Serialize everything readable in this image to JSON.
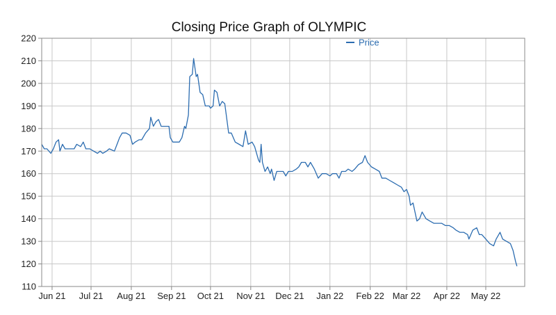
{
  "chart_data": {
    "type": "line",
    "title": "Closing Price Graph of OLYMPIC",
    "xlabel": "",
    "ylabel": "",
    "ylim": [
      110,
      220
    ],
    "yticks": [
      110,
      120,
      130,
      140,
      150,
      160,
      170,
      180,
      190,
      200,
      210,
      220
    ],
    "x_start": "2021-05-24",
    "x_end": "2022-05-31",
    "xticks": [
      {
        "date": "2021-06-01",
        "label": "Jun 21"
      },
      {
        "date": "2021-07-01",
        "label": "Jul 21"
      },
      {
        "date": "2021-08-01",
        "label": "Aug 21"
      },
      {
        "date": "2021-09-01",
        "label": "Sep 21"
      },
      {
        "date": "2021-10-01",
        "label": "Oct 21"
      },
      {
        "date": "2021-11-01",
        "label": "Nov 21"
      },
      {
        "date": "2021-12-01",
        "label": "Dec 21"
      },
      {
        "date": "2022-01-01",
        "label": "Jan 22"
      },
      {
        "date": "2022-02-01",
        "label": "Feb 22"
      },
      {
        "date": "2022-03-01",
        "label": "Mar 22"
      },
      {
        "date": "2022-04-01",
        "label": "Apr 22"
      },
      {
        "date": "2022-05-01",
        "label": "May 22"
      }
    ],
    "grid": true,
    "legend_position": "top-right",
    "series": [
      {
        "name": "Price",
        "color": "#2b6cb0",
        "points": [
          [
            "2021-05-24",
            173
          ],
          [
            "2021-05-26",
            171
          ],
          [
            "2021-05-28",
            171
          ],
          [
            "2021-05-31",
            169
          ],
          [
            "2021-06-02",
            171
          ],
          [
            "2021-06-04",
            174
          ],
          [
            "2021-06-06",
            175
          ],
          [
            "2021-06-07",
            170
          ],
          [
            "2021-06-09",
            173
          ],
          [
            "2021-06-11",
            171
          ],
          [
            "2021-06-14",
            171
          ],
          [
            "2021-06-16",
            171
          ],
          [
            "2021-06-18",
            171
          ],
          [
            "2021-06-20",
            173
          ],
          [
            "2021-06-23",
            172
          ],
          [
            "2021-06-25",
            174
          ],
          [
            "2021-06-27",
            171
          ],
          [
            "2021-06-30",
            171
          ],
          [
            "2021-07-03",
            170
          ],
          [
            "2021-07-06",
            169
          ],
          [
            "2021-07-08",
            170
          ],
          [
            "2021-07-10",
            169
          ],
          [
            "2021-07-13",
            170
          ],
          [
            "2021-07-15",
            171
          ],
          [
            "2021-07-19",
            170
          ],
          [
            "2021-07-21",
            173
          ],
          [
            "2021-07-23",
            176
          ],
          [
            "2021-07-25",
            178
          ],
          [
            "2021-07-28",
            178
          ],
          [
            "2021-07-31",
            177
          ],
          [
            "2021-08-02",
            173
          ],
          [
            "2021-08-04",
            174
          ],
          [
            "2021-08-07",
            175
          ],
          [
            "2021-08-09",
            175
          ],
          [
            "2021-08-12",
            178
          ],
          [
            "2021-08-15",
            180
          ],
          [
            "2021-08-16",
            185
          ],
          [
            "2021-08-18",
            181
          ],
          [
            "2021-08-20",
            183
          ],
          [
            "2021-08-22",
            184
          ],
          [
            "2021-08-24",
            181
          ],
          [
            "2021-08-27",
            181
          ],
          [
            "2021-08-30",
            181
          ],
          [
            "2021-08-31",
            176
          ],
          [
            "2021-09-02",
            174
          ],
          [
            "2021-09-04",
            174
          ],
          [
            "2021-09-07",
            174
          ],
          [
            "2021-09-09",
            176
          ],
          [
            "2021-09-11",
            181
          ],
          [
            "2021-09-12",
            180
          ],
          [
            "2021-09-14",
            186
          ],
          [
            "2021-09-15",
            203
          ],
          [
            "2021-09-17",
            204
          ],
          [
            "2021-09-18",
            211
          ],
          [
            "2021-09-20",
            203
          ],
          [
            "2021-09-21",
            204
          ],
          [
            "2021-09-23",
            196
          ],
          [
            "2021-09-25",
            195
          ],
          [
            "2021-09-27",
            190
          ],
          [
            "2021-09-30",
            190
          ],
          [
            "2021-10-01",
            189
          ],
          [
            "2021-10-03",
            190
          ],
          [
            "2021-10-04",
            197
          ],
          [
            "2021-10-06",
            196
          ],
          [
            "2021-10-08",
            190
          ],
          [
            "2021-10-10",
            192
          ],
          [
            "2021-10-12",
            191
          ],
          [
            "2021-10-15",
            178
          ],
          [
            "2021-10-17",
            178
          ],
          [
            "2021-10-20",
            174
          ],
          [
            "2021-10-23",
            173
          ],
          [
            "2021-10-26",
            172
          ],
          [
            "2021-10-28",
            179
          ],
          [
            "2021-10-30",
            173
          ],
          [
            "2021-11-02",
            174
          ],
          [
            "2021-11-04",
            172
          ],
          [
            "2021-11-07",
            166
          ],
          [
            "2021-11-08",
            165
          ],
          [
            "2021-11-09",
            173
          ],
          [
            "2021-11-10",
            165
          ],
          [
            "2021-11-12",
            161
          ],
          [
            "2021-11-14",
            163
          ],
          [
            "2021-11-16",
            160
          ],
          [
            "2021-11-17",
            162
          ],
          [
            "2021-11-19",
            157
          ],
          [
            "2021-11-21",
            161
          ],
          [
            "2021-11-24",
            161
          ],
          [
            "2021-11-26",
            161
          ],
          [
            "2021-11-28",
            159
          ],
          [
            "2021-11-30",
            161
          ],
          [
            "2021-12-03",
            161
          ],
          [
            "2021-12-06",
            162
          ],
          [
            "2021-12-08",
            163
          ],
          [
            "2021-12-10",
            165
          ],
          [
            "2021-12-13",
            165
          ],
          [
            "2021-12-15",
            163
          ],
          [
            "2021-12-17",
            165
          ],
          [
            "2021-12-20",
            162
          ],
          [
            "2021-12-23",
            158
          ],
          [
            "2021-12-26",
            160
          ],
          [
            "2021-12-29",
            160
          ],
          [
            "2022-01-01",
            159
          ],
          [
            "2022-01-03",
            160
          ],
          [
            "2022-01-06",
            160
          ],
          [
            "2022-01-08",
            158
          ],
          [
            "2022-01-10",
            161
          ],
          [
            "2022-01-13",
            161
          ],
          [
            "2022-01-15",
            162
          ],
          [
            "2022-01-18",
            161
          ],
          [
            "2022-01-20",
            162
          ],
          [
            "2022-01-23",
            164
          ],
          [
            "2022-01-26",
            165
          ],
          [
            "2022-01-28",
            168
          ],
          [
            "2022-01-30",
            165
          ],
          [
            "2022-02-02",
            163
          ],
          [
            "2022-02-05",
            162
          ],
          [
            "2022-02-08",
            161
          ],
          [
            "2022-02-10",
            158
          ],
          [
            "2022-02-13",
            158
          ],
          [
            "2022-02-16",
            157
          ],
          [
            "2022-02-19",
            156
          ],
          [
            "2022-02-22",
            155
          ],
          [
            "2022-02-25",
            154
          ],
          [
            "2022-02-27",
            152
          ],
          [
            "2022-03-01",
            153
          ],
          [
            "2022-03-03",
            150
          ],
          [
            "2022-03-04",
            146
          ],
          [
            "2022-03-06",
            147
          ],
          [
            "2022-03-09",
            139
          ],
          [
            "2022-03-11",
            140
          ],
          [
            "2022-03-13",
            143
          ],
          [
            "2022-03-16",
            140
          ],
          [
            "2022-03-19",
            139
          ],
          [
            "2022-03-22",
            138
          ],
          [
            "2022-03-25",
            138
          ],
          [
            "2022-03-28",
            138
          ],
          [
            "2022-03-31",
            137
          ],
          [
            "2022-04-03",
            137
          ],
          [
            "2022-04-06",
            136
          ],
          [
            "2022-04-08",
            135
          ],
          [
            "2022-04-11",
            134
          ],
          [
            "2022-04-14",
            134
          ],
          [
            "2022-04-17",
            133
          ],
          [
            "2022-04-18",
            131
          ],
          [
            "2022-04-21",
            135
          ],
          [
            "2022-04-24",
            136
          ],
          [
            "2022-04-26",
            133
          ],
          [
            "2022-04-28",
            133
          ],
          [
            "2022-05-01",
            131
          ],
          [
            "2022-05-04",
            129
          ],
          [
            "2022-05-07",
            128
          ],
          [
            "2022-05-09",
            131
          ],
          [
            "2022-05-12",
            134
          ],
          [
            "2022-05-14",
            131
          ],
          [
            "2022-05-17",
            130
          ],
          [
            "2022-05-20",
            129
          ],
          [
            "2022-05-22",
            126
          ],
          [
            "2022-05-24",
            121
          ],
          [
            "2022-05-25",
            119
          ]
        ]
      }
    ]
  }
}
